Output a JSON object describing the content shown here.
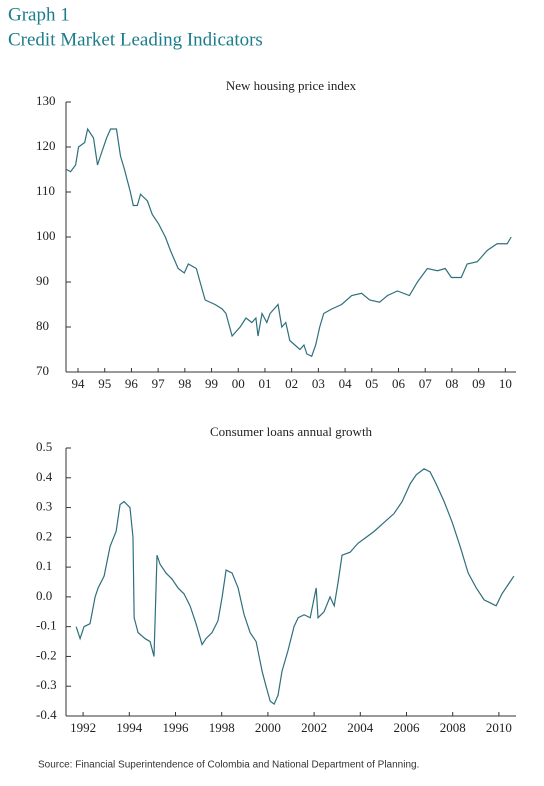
{
  "header": {
    "label": "Graph 1",
    "title": "Credit Market Leading Indicators"
  },
  "source": "Source: Financial Superintendence of Colombia and National Department of Planning.",
  "chart_data": [
    {
      "type": "line",
      "title": "New housing price index",
      "color": "#2f6f7c",
      "xlim": [
        1994.05,
        2010.9
      ],
      "ylim": [
        70,
        130
      ],
      "yticks": [
        70,
        80,
        90,
        100,
        110,
        120,
        130
      ],
      "xticks": [
        {
          "value": 1994.5,
          "label": "94"
        },
        {
          "value": 1995.5,
          "label": "95"
        },
        {
          "value": 1996.5,
          "label": "96"
        },
        {
          "value": 1997.5,
          "label": "97"
        },
        {
          "value": 1998.5,
          "label": "98"
        },
        {
          "value": 1999.5,
          "label": "99"
        },
        {
          "value": 2000.5,
          "label": "00"
        },
        {
          "value": 2001.5,
          "label": "01"
        },
        {
          "value": 2002.5,
          "label": "02"
        },
        {
          "value": 2003.5,
          "label": "03"
        },
        {
          "value": 2004.5,
          "label": "04"
        },
        {
          "value": 2005.5,
          "label": "05"
        },
        {
          "value": 2006.5,
          "label": "06"
        },
        {
          "value": 2007.5,
          "label": "07"
        },
        {
          "value": 2008.5,
          "label": "08"
        },
        {
          "value": 2009.5,
          "label": "09"
        },
        {
          "value": 2010.5,
          "label": "10"
        }
      ],
      "x": [
        1994.07,
        1994.22,
        1994.41,
        1994.52,
        1994.75,
        1994.86,
        1995.08,
        1995.23,
        1995.34,
        1995.57,
        1995.72,
        1995.94,
        1996.09,
        1996.24,
        1996.46,
        1996.57,
        1996.72,
        1996.84,
        1997.1,
        1997.28,
        1997.51,
        1997.77,
        1997.96,
        1998.25,
        1998.48,
        1998.63,
        1998.93,
        1999.07,
        1999.26,
        1999.63,
        1999.9,
        2000.04,
        2000.27,
        2000.57,
        2000.79,
        2001.01,
        2001.16,
        2001.24,
        2001.39,
        2001.57,
        2001.69,
        2001.84,
        2001.99,
        2002.13,
        2002.28,
        2002.43,
        2002.62,
        2002.81,
        2002.96,
        2003.07,
        2003.25,
        2003.4,
        2003.55,
        2003.7,
        2004.0,
        2004.37,
        2004.75,
        2005.12,
        2005.42,
        2005.79,
        2006.09,
        2006.46,
        2006.91,
        2007.21,
        2007.58,
        2007.96,
        2008.25,
        2008.48,
        2008.85,
        2009.07,
        2009.45,
        2009.82,
        2010.19,
        2010.57,
        2010.72
      ],
      "values": [
        115,
        114.5,
        116,
        120,
        121,
        124,
        122,
        116,
        118,
        122,
        124,
        124,
        118,
        115,
        110,
        107,
        107,
        109.5,
        108,
        105,
        103,
        100,
        97,
        93,
        92,
        94,
        93,
        90,
        86,
        85,
        84,
        83,
        78,
        80,
        82,
        81,
        82,
        78,
        83,
        81,
        83,
        84,
        85,
        80,
        81,
        77,
        76,
        75,
        76,
        74,
        73.5,
        76,
        80,
        83,
        84,
        85,
        87,
        87.5,
        86,
        85.5,
        87,
        88,
        87,
        90,
        93,
        92.5,
        93,
        91,
        91,
        94,
        94.5,
        97,
        98.5,
        98.5,
        100
      ]
    },
    {
      "type": "line",
      "title": "Consumer loans annual growth",
      "color": "#2f6f7c",
      "xlim": [
        1991.26,
        2010.74
      ],
      "ylim": [
        -0.4,
        0.5
      ],
      "yticks": [
        -0.4,
        -0.3,
        -0.2,
        -0.1,
        {
          "value": 0,
          "label": "0.0"
        },
        0.1,
        0.2,
        0.3,
        0.4,
        0.5
      ],
      "xticks": [
        1992,
        1994,
        1996,
        1998,
        2000,
        2002,
        2004,
        2006,
        2008,
        2010
      ],
      "x": [
        1991.7,
        1991.87,
        1992.04,
        1992.3,
        1992.52,
        1992.65,
        1992.91,
        1993.17,
        1993.43,
        1993.6,
        1993.77,
        1994.03,
        1994.16,
        1994.21,
        1994.38,
        1994.68,
        1994.9,
        1995.07,
        1995.2,
        1995.33,
        1995.59,
        1995.85,
        1996.11,
        1996.37,
        1996.63,
        1996.89,
        1997.15,
        1997.32,
        1997.58,
        1997.84,
        1998.02,
        1998.19,
        1998.45,
        1998.71,
        1998.97,
        1999.23,
        1999.49,
        1999.75,
        1999.92,
        2000.1,
        2000.27,
        2000.44,
        2000.61,
        2000.87,
        2001.13,
        2001.31,
        2001.57,
        2001.83,
        2002.09,
        2002.17,
        2002.43,
        2002.69,
        2002.87,
        2003.04,
        2003.21,
        2003.56,
        2003.9,
        2004.25,
        2004.6,
        2005.03,
        2005.46,
        2005.81,
        2006.16,
        2006.42,
        2006.76,
        2007.02,
        2007.28,
        2007.63,
        2007.98,
        2008.32,
        2008.67,
        2009.02,
        2009.36,
        2009.62,
        2009.88,
        2010.13,
        2010.39,
        2010.65
      ],
      "values": [
        -0.1,
        -0.14,
        -0.1,
        -0.09,
        0.0,
        0.03,
        0.07,
        0.17,
        0.22,
        0.31,
        0.32,
        0.3,
        0.2,
        -0.07,
        -0.12,
        -0.14,
        -0.15,
        -0.2,
        0.14,
        0.11,
        0.08,
        0.06,
        0.03,
        0.01,
        -0.03,
        -0.09,
        -0.16,
        -0.14,
        -0.12,
        -0.08,
        0.0,
        0.09,
        0.08,
        0.03,
        -0.06,
        -0.12,
        -0.15,
        -0.25,
        -0.3,
        -0.35,
        -0.36,
        -0.33,
        -0.25,
        -0.18,
        -0.1,
        -0.07,
        -0.06,
        -0.07,
        0.03,
        -0.07,
        -0.05,
        0.0,
        -0.03,
        0.05,
        0.14,
        0.15,
        0.18,
        0.2,
        0.22,
        0.25,
        0.28,
        0.32,
        0.38,
        0.41,
        0.43,
        0.42,
        0.38,
        0.32,
        0.25,
        0.17,
        0.08,
        0.03,
        -0.01,
        -0.02,
        -0.03,
        0.01,
        0.04,
        0.07
      ]
    }
  ]
}
